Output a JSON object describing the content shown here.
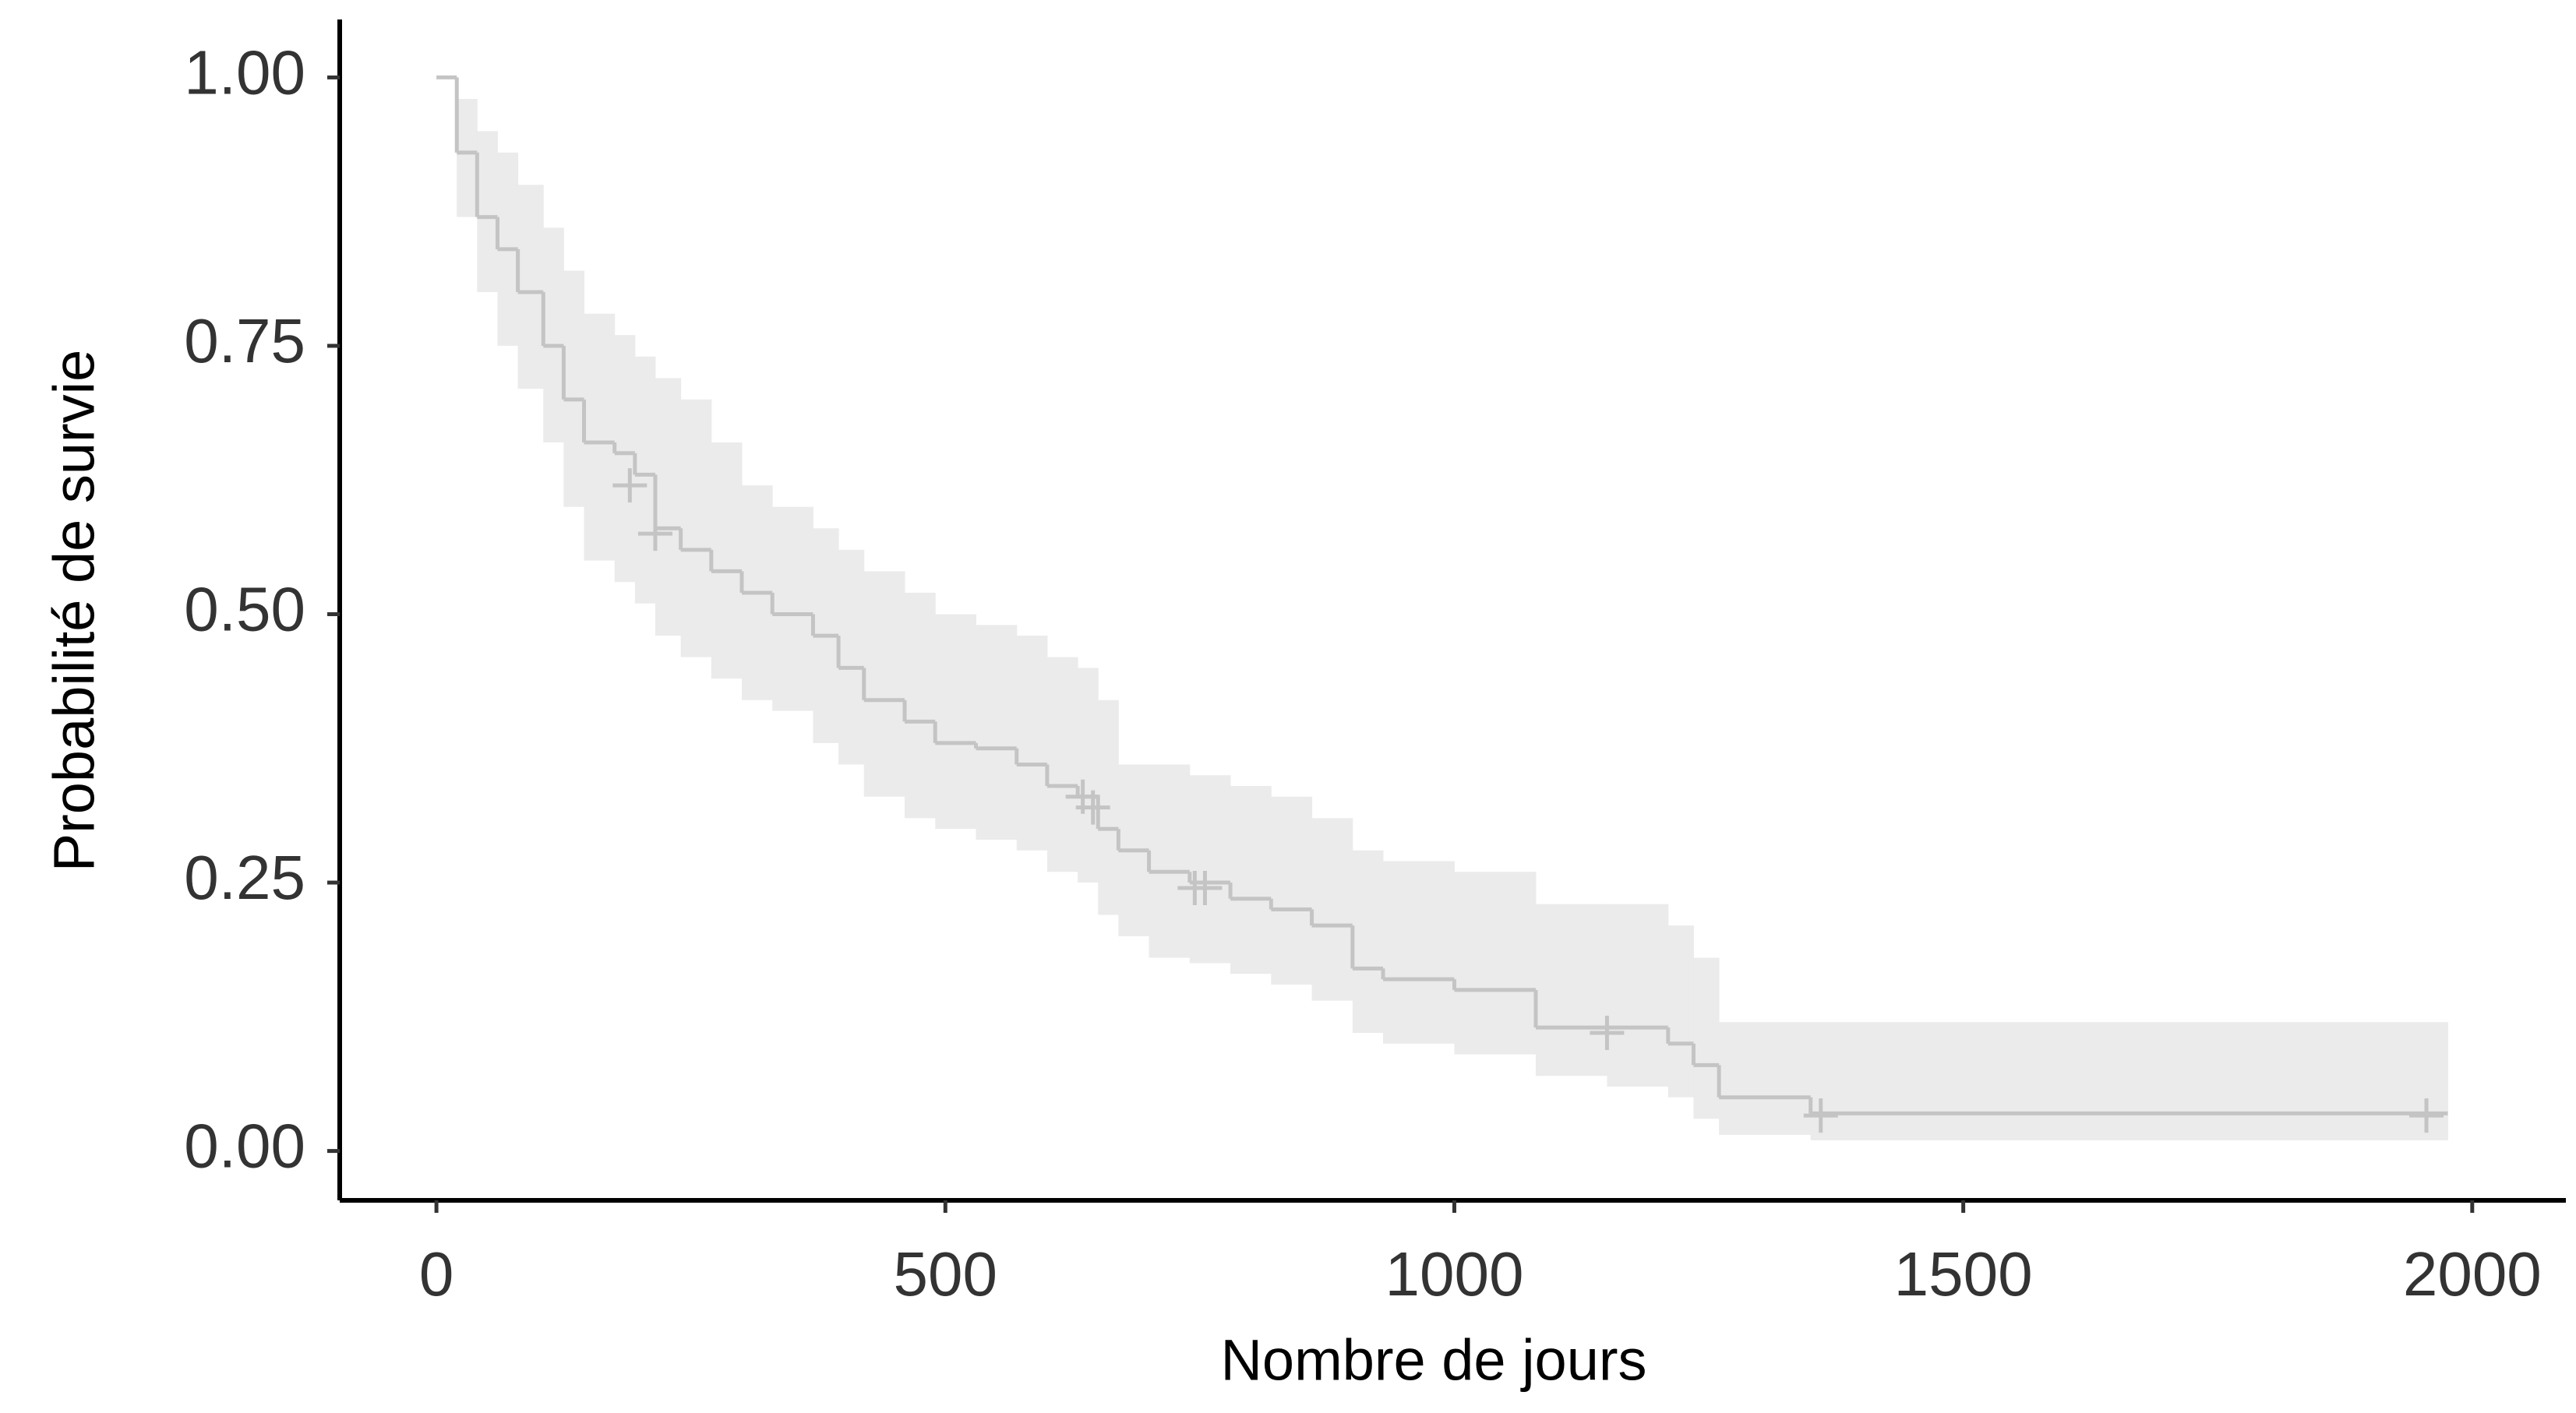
{
  "chart_data": {
    "type": "km",
    "x_label": "Nombre de jours",
    "y_label": "Probabilité de survie",
    "x": [
      0,
      20,
      40,
      60,
      80,
      105,
      125,
      145,
      175,
      195,
      215,
      240,
      270,
      300,
      330,
      370,
      395,
      420,
      460,
      490,
      530,
      570,
      600,
      630,
      650,
      670,
      700,
      740,
      780,
      820,
      860,
      900,
      930,
      1000,
      1080,
      1150,
      1210,
      1235,
      1260,
      1350,
      1976
    ],
    "survival": [
      1.0,
      0.93,
      0.87,
      0.84,
      0.8,
      0.75,
      0.7,
      0.66,
      0.65,
      0.63,
      0.58,
      0.56,
      0.54,
      0.52,
      0.5,
      0.48,
      0.45,
      0.42,
      0.4,
      0.38,
      0.375,
      0.36,
      0.34,
      0.33,
      0.3,
      0.28,
      0.26,
      0.25,
      0.235,
      0.225,
      0.21,
      0.17,
      0.16,
      0.15,
      0.115,
      0.115,
      0.1,
      0.08,
      0.05,
      0.035,
      0.035
    ],
    "upper": [
      1.0,
      0.98,
      0.95,
      0.93,
      0.9,
      0.86,
      0.82,
      0.78,
      0.76,
      0.74,
      0.72,
      0.7,
      0.66,
      0.62,
      0.6,
      0.58,
      0.56,
      0.54,
      0.52,
      0.5,
      0.49,
      0.48,
      0.46,
      0.45,
      0.42,
      0.36,
      0.36,
      0.35,
      0.34,
      0.33,
      0.31,
      0.28,
      0.27,
      0.26,
      0.23,
      0.23,
      0.21,
      0.18,
      0.12,
      0.12,
      0.12
    ],
    "lower": [
      1.0,
      0.87,
      0.8,
      0.75,
      0.71,
      0.66,
      0.6,
      0.55,
      0.53,
      0.51,
      0.48,
      0.46,
      0.44,
      0.42,
      0.41,
      0.38,
      0.36,
      0.33,
      0.31,
      0.3,
      0.29,
      0.28,
      0.26,
      0.25,
      0.22,
      0.2,
      0.18,
      0.175,
      0.165,
      0.155,
      0.14,
      0.11,
      0.1,
      0.09,
      0.07,
      0.06,
      0.05,
      0.03,
      0.015,
      0.01,
      0.01
    ],
    "censor_x": [
      190,
      215,
      635,
      645,
      745,
      755,
      1150,
      1360,
      1955
    ],
    "censor_y": [
      0.62,
      0.575,
      0.33,
      0.32,
      0.245,
      0.245,
      0.11,
      0.033,
      0.033
    ],
    "line_color": "#c4c4c4",
    "band_color": "#ebebeb",
    "censor_color": "#c4c4c4",
    "xlim": [
      -95,
      2092
    ],
    "ylim": [
      -0.046,
      1.054
    ],
    "xticks": [
      0,
      500,
      1000,
      1500,
      2000
    ],
    "yticks": [
      {
        "value": 0,
        "label": "0.00"
      },
      {
        "value": 0.25,
        "label": "0.25"
      },
      {
        "value": 0.5,
        "label": "0.50"
      },
      {
        "value": 0.75,
        "label": "0.75"
      },
      {
        "value": 1,
        "label": "1.00"
      }
    ]
  }
}
